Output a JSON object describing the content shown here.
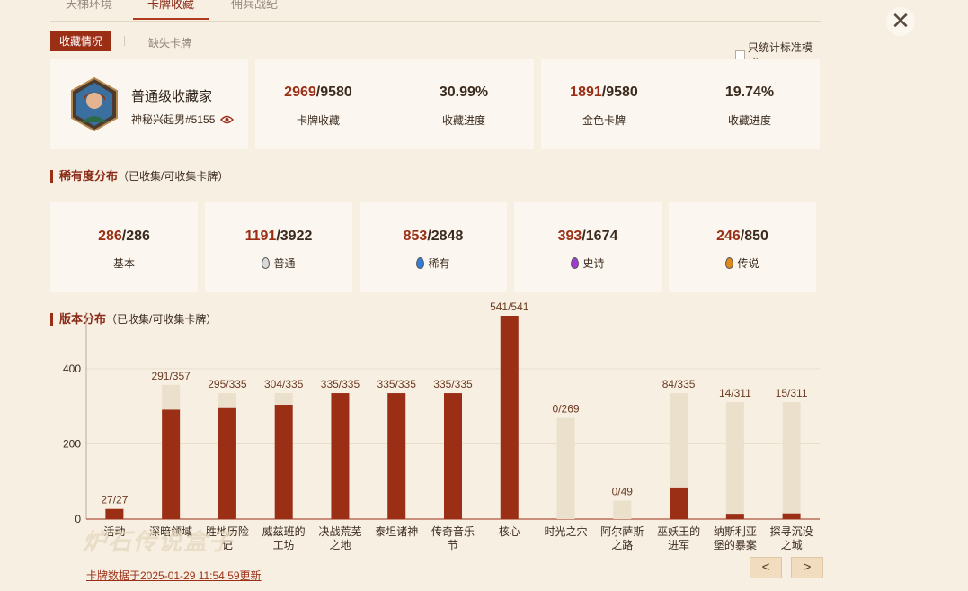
{
  "tabs": [
    "天梯环境",
    "卡牌收藏",
    "佣兵战纪"
  ],
  "active_tab": 1,
  "close_icon": "close-icon",
  "subtabs": {
    "active": "收藏情况",
    "other": "缺失卡牌"
  },
  "standard_only": {
    "label": "只统计标准模式",
    "checked": false
  },
  "profile": {
    "title": "普通级收藏家",
    "name": "神秘兴起男#5155",
    "icon": "eye-icon"
  },
  "stats": [
    {
      "have": "2969",
      "total": "/9580",
      "label": "卡牌收藏"
    },
    {
      "value": "30.99%",
      "label": "收藏进度"
    },
    {
      "have": "1891",
      "total": "/9580",
      "label": "金色卡牌"
    },
    {
      "value": "19.74%",
      "label": "收藏进度"
    }
  ],
  "rarity_section": {
    "title": "稀有度分布",
    "subtitle": "（已收集/可收集卡牌）"
  },
  "rarity": [
    {
      "have": "286",
      "total": "/286",
      "label": "基本",
      "gem_color": ""
    },
    {
      "have": "1191",
      "total": "/3922",
      "label": "普通",
      "gem_color": "#d9d9d9"
    },
    {
      "have": "853",
      "total": "/2848",
      "label": "稀有",
      "gem_color": "#2f7fd8"
    },
    {
      "have": "393",
      "total": "/1674",
      "label": "史诗",
      "gem_color": "#a23bd6"
    },
    {
      "have": "246",
      "total": "/850",
      "label": "传说",
      "gem_color": "#e08a1c"
    }
  ],
  "version_section": {
    "title": "版本分布",
    "subtitle": "（已收集/可收集卡牌）"
  },
  "chart_data": {
    "type": "bar",
    "stacked": "overlay",
    "ylim": [
      0,
      541
    ],
    "yticks": [
      0,
      200,
      400
    ],
    "grid": true,
    "categories": [
      [
        "活动"
      ],
      [
        "深暗领域"
      ],
      [
        "胜地历险",
        "记"
      ],
      [
        "威兹班的",
        "工坊"
      ],
      [
        "决战荒芜",
        "之地"
      ],
      [
        "泰坦诸神"
      ],
      [
        "传奇音乐",
        "节"
      ],
      [
        "核心"
      ],
      [
        "时光之穴"
      ],
      [
        "阿尔萨斯",
        "之路"
      ],
      [
        "巫妖王的",
        "进军"
      ],
      [
        "纳斯利亚",
        "堡的暴案"
      ],
      [
        "探寻沉没",
        "之城"
      ]
    ],
    "collected": [
      27,
      291,
      295,
      304,
      335,
      335,
      335,
      541,
      0,
      0,
      84,
      14,
      15
    ],
    "total": [
      27,
      357,
      335,
      335,
      335,
      335,
      335,
      541,
      269,
      49,
      335,
      311,
      311
    ],
    "labels": [
      "27/27",
      "291/357",
      "295/335",
      "304/335",
      "335/335",
      "335/335",
      "335/335",
      "541/541",
      "0/269",
      "0/49",
      "84/335",
      "14/311",
      "15/311"
    ],
    "colors": {
      "collected": "#9b2f16",
      "total": "#ebe0cc"
    }
  },
  "footer": {
    "updated": "卡牌数据于2025-01-29 11:54:59更新",
    "watermark": "炉石传说盒子"
  },
  "pager": {
    "prev": "<",
    "next": ">"
  }
}
